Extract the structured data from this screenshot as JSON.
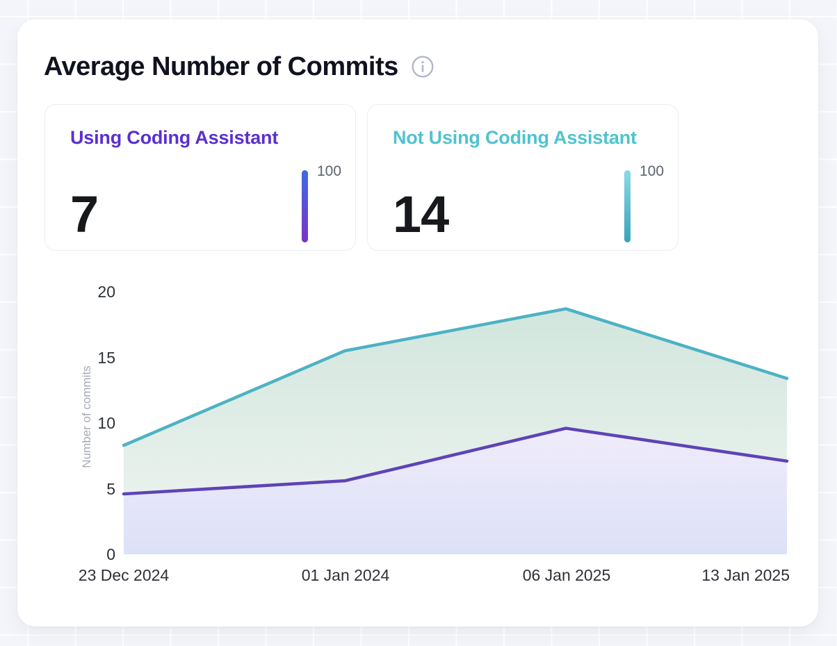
{
  "header": {
    "title": "Average Number of Commits"
  },
  "stat_cards": [
    {
      "title": "Using Coding Assistant",
      "value": "7",
      "scale_max_label": "100",
      "accent_color": "#5b2fd1",
      "bar_gradient_top": "#3f6be4",
      "bar_gradient_bottom": "#7c33c4"
    },
    {
      "title": "Not Using Coding Assistant",
      "value": "14",
      "scale_max_label": "100",
      "accent_color": "#4fc3cf",
      "bar_gradient_top": "#8bdae6",
      "bar_gradient_bottom": "#38a2b8"
    }
  ],
  "chart_data": {
    "type": "area",
    "title": "Average Number of Commits",
    "categories": [
      "23 Dec 2024",
      "01 Jan 2024",
      "06 Jan 2025",
      "13 Jan 2025"
    ],
    "series": [
      {
        "name": "Not Using Coding Assistant",
        "color": "#4db2c4",
        "fill_top": "#cfe5dc",
        "fill_bottom": "#f1f5f2",
        "values": [
          8.3,
          15.5,
          18.7,
          13.4
        ]
      },
      {
        "name": "Using Coding Assistant",
        "color": "#5e43b7",
        "fill_top": "#f0ecfa",
        "fill_bottom": "#dce0f8",
        "values": [
          4.6,
          5.6,
          9.6,
          7.1
        ]
      }
    ],
    "xlabel": "",
    "ylabel": "Number of commits",
    "yticks": [
      0,
      5,
      10,
      15,
      20
    ],
    "ylim": [
      0,
      20
    ],
    "grid": false,
    "legend": "none"
  }
}
